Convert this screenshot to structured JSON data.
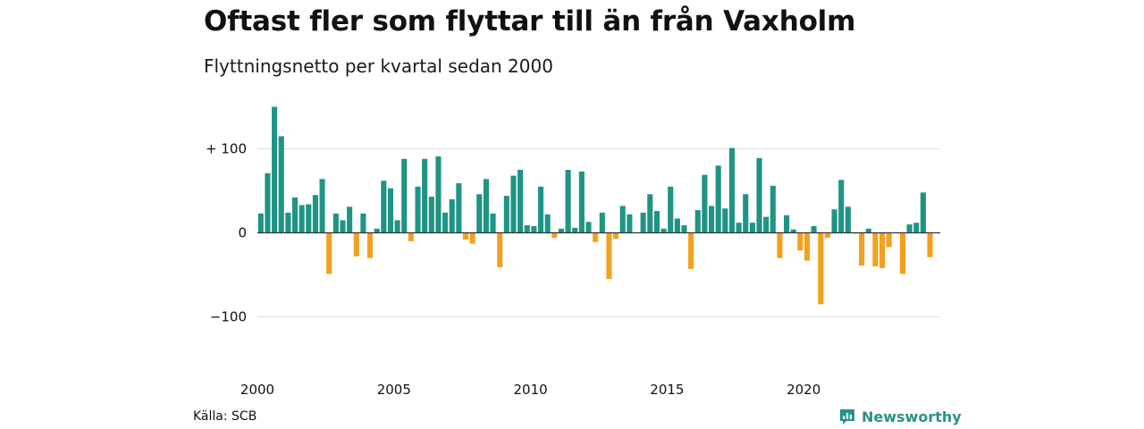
{
  "title": "Oftast fler som flyttar till än från Vaxholm",
  "subtitle": "Flyttningsnetto per kvartal sedan 2000",
  "source": "Källa: SCB",
  "brand": {
    "name": "Newsworthy",
    "icon": "newsworthy-logo-icon"
  },
  "colors": {
    "positive": "#1f9484",
    "negative": "#f2a11f",
    "grid": "#dddddd",
    "zero": "#333333",
    "brand": "#2a9285"
  },
  "chart_data": {
    "type": "bar",
    "title": "Oftast fler som flyttar till än från Vaxholm",
    "subtitle": "Flyttningsnetto per kvartal sedan 2000",
    "ylim": [
      -150,
      160
    ],
    "yticks": [
      100,
      0,
      -100
    ],
    "ytick_labels": [
      "+ 100",
      "0",
      "−100"
    ],
    "xtick_labels": [
      "2000",
      "2005",
      "2010",
      "2015",
      "2020"
    ],
    "grid": true,
    "categories": [
      "2000 K1",
      "2000 K2",
      "2000 K3",
      "2000 K4",
      "2001 K1",
      "2001 K2",
      "2001 K3",
      "2001 K4",
      "2002 K1",
      "2002 K2",
      "2002 K3",
      "2002 K4",
      "2003 K1",
      "2003 K2",
      "2003 K3",
      "2003 K4",
      "2004 K1",
      "2004 K2",
      "2004 K3",
      "2004 K4",
      "2005 K1",
      "2005 K2",
      "2005 K3",
      "2005 K4",
      "2006 K1",
      "2006 K2",
      "2006 K3",
      "2006 K4",
      "2007 K1",
      "2007 K2",
      "2007 K3",
      "2007 K4",
      "2008 K1",
      "2008 K2",
      "2008 K3",
      "2008 K4",
      "2009 K1",
      "2009 K2",
      "2009 K3",
      "2009 K4",
      "2010 K1",
      "2010 K2",
      "2010 K3",
      "2010 K4",
      "2011 K1",
      "2011 K2",
      "2011 K3",
      "2011 K4",
      "2012 K1",
      "2012 K2",
      "2012 K3",
      "2012 K4",
      "2013 K1",
      "2013 K2",
      "2013 K3",
      "2013 K4",
      "2014 K1",
      "2014 K2",
      "2014 K3",
      "2014 K4",
      "2015 K1",
      "2015 K2",
      "2015 K3",
      "2015 K4",
      "2016 K1",
      "2016 K2",
      "2016 K3",
      "2016 K4",
      "2017 K1",
      "2017 K2",
      "2017 K3",
      "2017 K4",
      "2018 K1",
      "2018 K2",
      "2018 K3",
      "2018 K4",
      "2019 K1",
      "2019 K2",
      "2019 K3",
      "2019 K4",
      "2020 K1",
      "2020 K2",
      "2020 K3",
      "2020 K4",
      "2021 K1",
      "2021 K2",
      "2021 K3",
      "2021 K4",
      "2022 K1",
      "2022 K2",
      "2022 K3",
      "2022 K4",
      "2023 K1",
      "2023 K2",
      "2023 K3",
      "2023 K4",
      "2024 K1",
      "2024 K2",
      "2024 K3",
      "2024 K4"
    ],
    "values": [
      23,
      71,
      150,
      115,
      24,
      42,
      33,
      34,
      45,
      64,
      -49,
      23,
      15,
      31,
      -28,
      23,
      -30,
      5,
      62,
      53,
      15,
      88,
      -10,
      55,
      88,
      43,
      91,
      24,
      40,
      59,
      -8,
      -13,
      46,
      64,
      23,
      -41,
      44,
      68,
      75,
      9,
      8,
      55,
      22,
      -6,
      5,
      75,
      6,
      73,
      13,
      -11,
      24,
      -55,
      -7,
      32,
      22,
      0,
      24,
      46,
      26,
      5,
      55,
      17,
      9,
      -43,
      27,
      69,
      32,
      80,
      29,
      101,
      12,
      46,
      12,
      89,
      19,
      56,
      -30,
      21,
      4,
      -21,
      -33,
      8,
      -85,
      -6,
      28,
      63,
      31,
      -1,
      -39,
      5,
      -40,
      -42,
      -17,
      0,
      -49,
      10,
      12,
      48,
      -29,
      0
    ]
  }
}
